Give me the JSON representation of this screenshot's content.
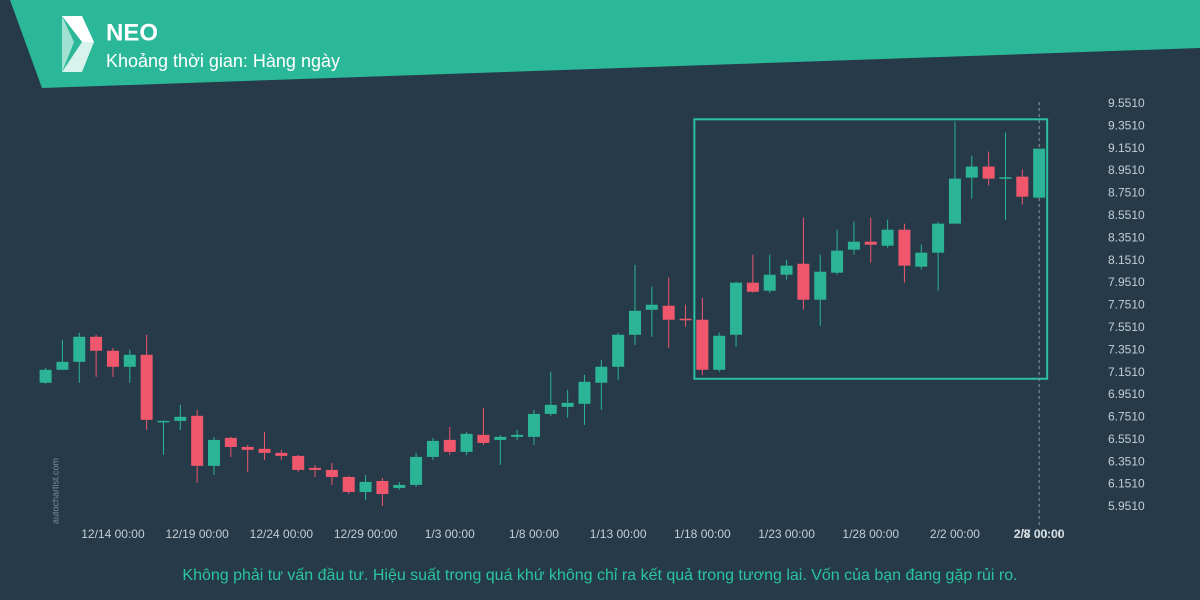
{
  "header": {
    "title": "NEO",
    "subtitle": "Khoảng thời gian: Hàng ngày"
  },
  "chart_data": {
    "type": "candlestick",
    "x": [
      "12/10 00:00",
      "12/11 00:00",
      "12/12 00:00",
      "12/13 00:00",
      "12/14 00:00",
      "12/15 00:00",
      "12/16 00:00",
      "12/17 00:00",
      "12/18 00:00",
      "12/19 00:00",
      "12/20 00:00",
      "12/21 00:00",
      "12/22 00:00",
      "12/23 00:00",
      "12/24 00:00",
      "12/25 00:00",
      "12/26 00:00",
      "12/27 00:00",
      "12/28 00:00",
      "12/29 00:00",
      "12/30 00:00",
      "12/31 00:00",
      "1/1 00:00",
      "1/2 00:00",
      "1/3 00:00",
      "1/4 00:00",
      "1/5 00:00",
      "1/6 00:00",
      "1/7 00:00",
      "1/8 00:00",
      "1/9 00:00",
      "1/10 00:00",
      "1/11 00:00",
      "1/12 00:00",
      "1/13 00:00",
      "1/14 00:00",
      "1/15 00:00",
      "1/16 00:00",
      "1/17 00:00",
      "1/18 00:00",
      "1/19 00:00",
      "1/20 00:00",
      "1/21 00:00",
      "1/22 00:00",
      "1/23 00:00",
      "1/24 00:00",
      "1/25 00:00",
      "1/26 00:00",
      "1/27 00:00",
      "1/28 00:00",
      "1/29 00:00",
      "1/30 00:00",
      "1/31 00:00",
      "2/1 00:00",
      "2/2 00:00",
      "2/3 00:00",
      "2/4 00:00",
      "2/5 00:00",
      "2/6 00:00",
      "2/7 00:00"
    ],
    "open": [
      7.06,
      7.176,
      7.247,
      7.471,
      7.346,
      7.203,
      7.31,
      6.711,
      6.72,
      6.765,
      6.318,
      6.568,
      6.487,
      6.47,
      6.434,
      6.407,
      6.3,
      6.282,
      6.219,
      6.085,
      6.183,
      6.121,
      6.148,
      6.398,
      6.55,
      6.443,
      6.595,
      6.55,
      6.577,
      6.577,
      6.782,
      6.845,
      6.872,
      7.06,
      7.203,
      7.489,
      7.712,
      7.748,
      7.632,
      7.623,
      7.176,
      7.489,
      7.954,
      7.882,
      8.025,
      8.123,
      7.802,
      8.043,
      8.249,
      8.32,
      8.284,
      8.427,
      8.097,
      8.222,
      8.481,
      8.892,
      8.991,
      8.892,
      8.901,
      8.713
    ],
    "high": [
      7.194,
      7.444,
      7.507,
      7.489,
      7.372,
      7.355,
      7.489,
      6.72,
      6.863,
      6.818,
      6.577,
      6.577,
      6.505,
      6.622,
      6.461,
      6.416,
      6.326,
      6.344,
      6.228,
      6.237,
      6.21,
      6.175,
      6.434,
      6.568,
      6.666,
      6.622,
      6.836,
      6.595,
      6.639,
      6.818,
      7.158,
      6.997,
      7.131,
      7.265,
      7.507,
      8.114,
      7.918,
      7.998,
      7.757,
      7.819,
      7.507,
      7.963,
      8.204,
      8.204,
      8.159,
      8.535,
      8.204,
      8.427,
      8.499,
      8.535,
      8.517,
      8.481,
      8.293,
      8.499,
      9.393,
      9.089,
      9.125,
      9.295,
      8.964,
      9.151
    ],
    "low": [
      7.051,
      7.176,
      7.06,
      7.113,
      7.113,
      7.06,
      6.639,
      6.416,
      6.639,
      6.166,
      6.237,
      6.398,
      6.264,
      6.371,
      6.371,
      6.264,
      6.219,
      6.148,
      6.067,
      6.014,
      5.96,
      6.103,
      6.13,
      6.371,
      6.416,
      6.416,
      6.505,
      6.326,
      6.55,
      6.505,
      6.765,
      6.747,
      6.684,
      6.818,
      7.086,
      7.399,
      7.471,
      7.372,
      7.56,
      7.131,
      7.158,
      7.381,
      7.864,
      7.864,
      7.98,
      7.712,
      7.569,
      8.025,
      8.204,
      8.132,
      8.266,
      7.954,
      8.07,
      7.882,
      8.481,
      8.705,
      8.821,
      8.517,
      8.651,
      8.713
    ],
    "close": [
      7.176,
      7.247,
      7.471,
      7.346,
      7.203,
      7.31,
      6.729,
      6.72,
      6.756,
      6.318,
      6.55,
      6.487,
      6.461,
      6.434,
      6.407,
      6.282,
      6.282,
      6.219,
      6.085,
      6.175,
      6.067,
      6.148,
      6.398,
      6.541,
      6.443,
      6.604,
      6.523,
      6.577,
      6.595,
      6.782,
      6.863,
      6.881,
      7.069,
      7.203,
      7.489,
      7.703,
      7.757,
      7.623,
      7.623,
      7.176,
      7.48,
      7.954,
      7.873,
      8.025,
      8.106,
      7.802,
      8.052,
      8.24,
      8.32,
      8.293,
      8.427,
      8.106,
      8.222,
      8.481,
      8.883,
      8.991,
      8.883,
      8.895,
      8.722,
      9.151
    ],
    "up_color": "#2bb596",
    "down_color": "#f0566c",
    "ylim": [
      5.79,
      9.63
    ],
    "yticks": [
      {
        "value": 5.951,
        "label": "5.9510"
      },
      {
        "value": 6.151,
        "label": "6.1510"
      },
      {
        "value": 6.351,
        "label": "6.3510"
      },
      {
        "value": 6.551,
        "label": "6.5510"
      },
      {
        "value": 6.751,
        "label": "6.7510"
      },
      {
        "value": 6.951,
        "label": "6.9510"
      },
      {
        "value": 7.151,
        "label": "7.1510"
      },
      {
        "value": 7.351,
        "label": "7.3510"
      },
      {
        "value": 7.551,
        "label": "7.5510"
      },
      {
        "value": 7.751,
        "label": "7.7510"
      },
      {
        "value": 7.951,
        "label": "7.9510"
      },
      {
        "value": 8.151,
        "label": "8.1510"
      },
      {
        "value": 8.351,
        "label": "8.3510"
      },
      {
        "value": 8.551,
        "label": "8.5510"
      },
      {
        "value": 8.751,
        "label": "8.7510"
      },
      {
        "value": 8.951,
        "label": "8.9510"
      },
      {
        "value": 9.151,
        "label": "9.1510"
      },
      {
        "value": 9.351,
        "label": "9.3510"
      },
      {
        "value": 9.551,
        "label": "9.5510"
      }
    ],
    "highlight": {
      "ylim": [
        7.096,
        9.413
      ],
      "color": "#2bc0a0"
    },
    "crosshair_label": "2/8 00:00",
    "watermark": "autochartist.com"
  },
  "footer": {
    "disclaimer": "Không phải tư vấn đầu tư. Hiệu suất trong quá khứ không chỉ ra kết quả trong tương lai. Vốn của bạn đang gặp rủi ro."
  }
}
